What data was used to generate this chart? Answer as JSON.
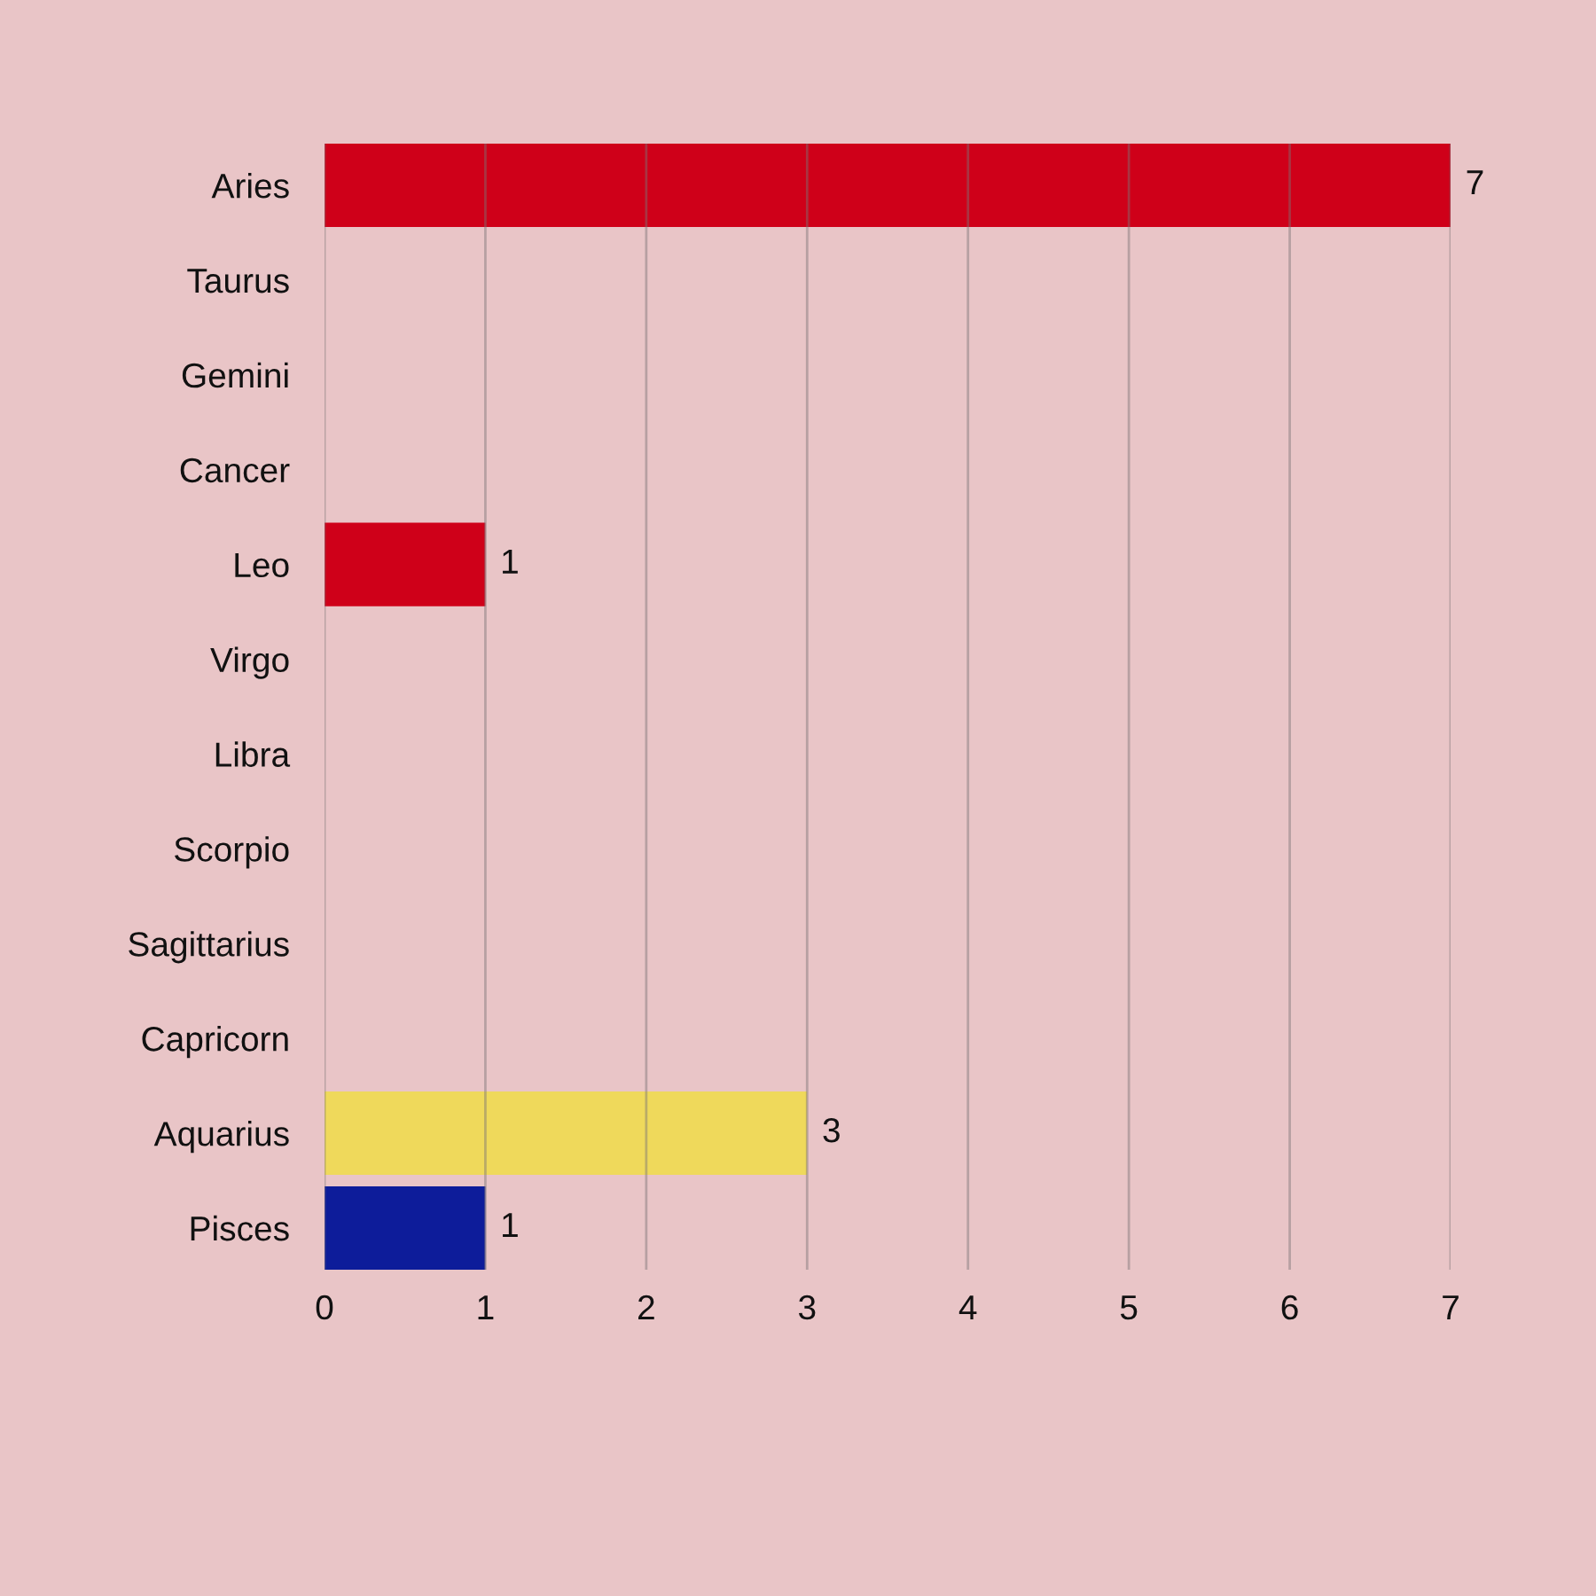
{
  "chart_data": {
    "type": "bar",
    "orientation": "horizontal",
    "categories": [
      "Aries",
      "Taurus",
      "Gemini",
      "Cancer",
      "Leo",
      "Virgo",
      "Libra",
      "Scorpio",
      "Sagittarius",
      "Capricorn",
      "Aquarius",
      "Pisces"
    ],
    "values": [
      7,
      0,
      0,
      0,
      1,
      0,
      0,
      0,
      0,
      0,
      3,
      1
    ],
    "colors": [
      "#cf0019",
      null,
      null,
      null,
      "#cf0019",
      null,
      null,
      null,
      null,
      null,
      "#efd95b",
      "#0d1c9a"
    ],
    "value_labels": [
      "7",
      null,
      null,
      null,
      "1",
      null,
      null,
      null,
      null,
      null,
      "3",
      "1"
    ],
    "xlim": [
      0,
      7
    ],
    "xticks": [
      0,
      1,
      2,
      3,
      4,
      5,
      6,
      7
    ],
    "grid": "x"
  }
}
